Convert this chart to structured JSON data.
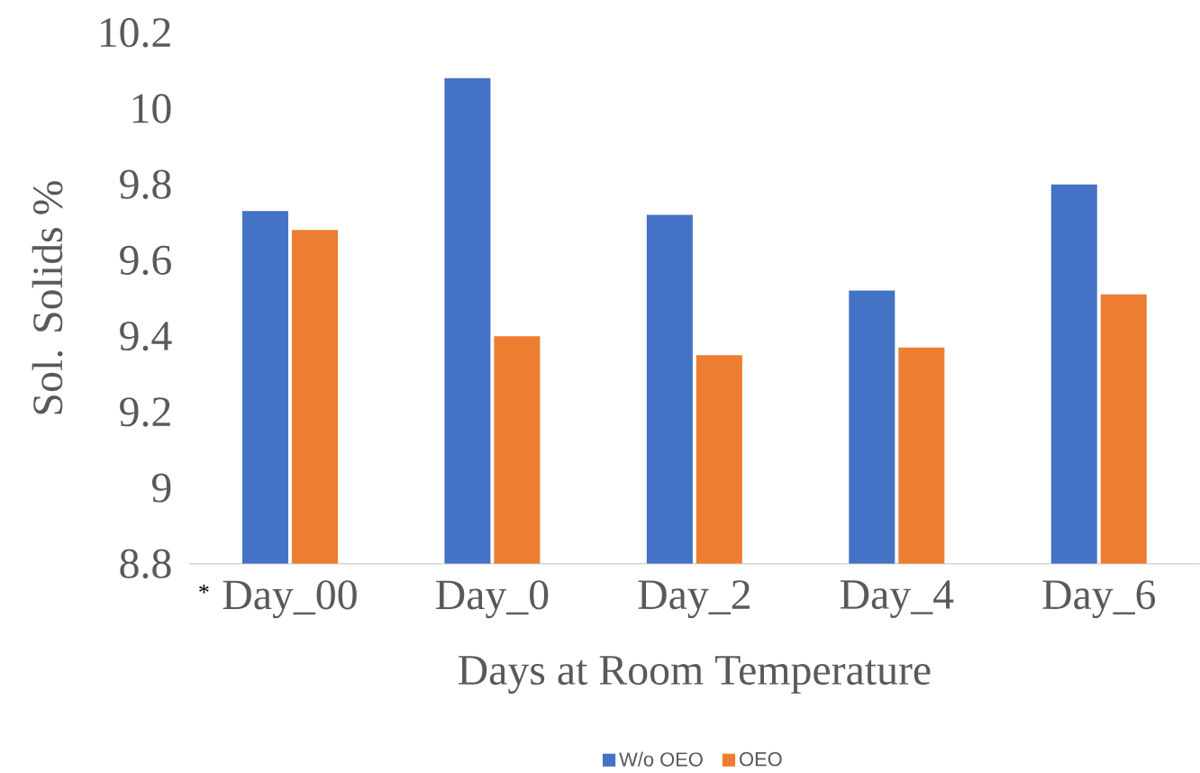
{
  "chart_data": {
    "type": "bar",
    "xlabel": "Days at Room Temperature",
    "ylabel": "Sol. Solids %",
    "categories": [
      "Day_00",
      "Day_0",
      "Day_2",
      "Day_4",
      "Day_6"
    ],
    "series": [
      {
        "name": "W/o OEO",
        "color": "#4472c4",
        "values": [
          9.73,
          10.08,
          9.72,
          9.52,
          9.8
        ]
      },
      {
        "name": "OEO",
        "color": "#ed7d31",
        "values": [
          9.68,
          9.4,
          9.35,
          9.37,
          9.51
        ]
      }
    ],
    "ylim": [
      8.8,
      10.2
    ],
    "yticks": [
      8.8,
      9,
      9.2,
      9.4,
      9.6,
      9.8,
      10,
      10.2
    ],
    "annotations": [
      "*"
    ],
    "legend": "bottom"
  }
}
